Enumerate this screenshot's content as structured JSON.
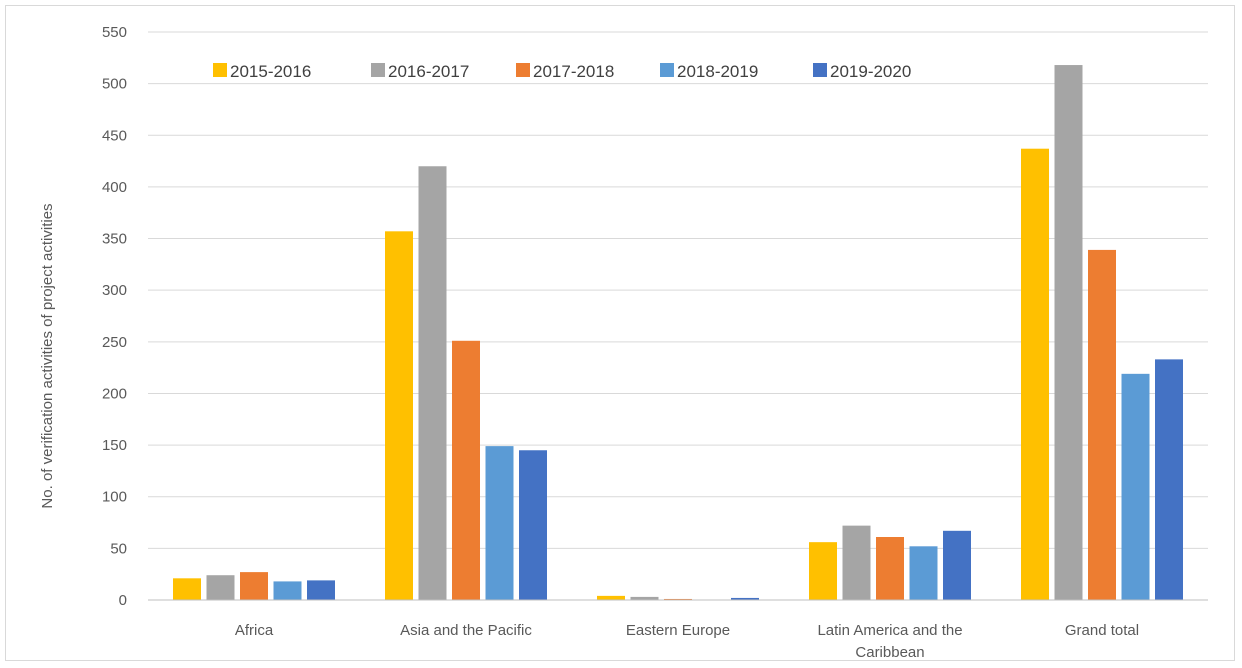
{
  "chart_data": {
    "type": "bar",
    "title": "",
    "xlabel": "",
    "ylabel": "No. of verification activities of project activities",
    "ylim": [
      0,
      550
    ],
    "yticks": [
      0,
      50,
      100,
      150,
      200,
      250,
      300,
      350,
      400,
      450,
      500,
      550
    ],
    "grid": true,
    "legend_position": "top",
    "categories": [
      [
        "Africa"
      ],
      [
        "Asia and the Pacific"
      ],
      [
        "Eastern Europe"
      ],
      [
        "Latin America and the",
        "Caribbean"
      ],
      [
        "Grand total"
      ]
    ],
    "series": [
      {
        "name": "2015-2016",
        "color": "#FFC000",
        "values": [
          21,
          357,
          4,
          56,
          437
        ]
      },
      {
        "name": "2016-2017",
        "color": "#A5A5A5",
        "values": [
          24,
          420,
          3,
          72,
          518
        ]
      },
      {
        "name": "2017-2018",
        "color": "#ED7D31",
        "values": [
          27,
          251,
          1,
          61,
          339
        ]
      },
      {
        "name": "2018-2019",
        "color": "#5B9BD5",
        "values": [
          18,
          149,
          0,
          52,
          219
        ]
      },
      {
        "name": "2019-2020",
        "color": "#4472C4",
        "values": [
          19,
          145,
          2,
          67,
          233
        ]
      }
    ]
  }
}
